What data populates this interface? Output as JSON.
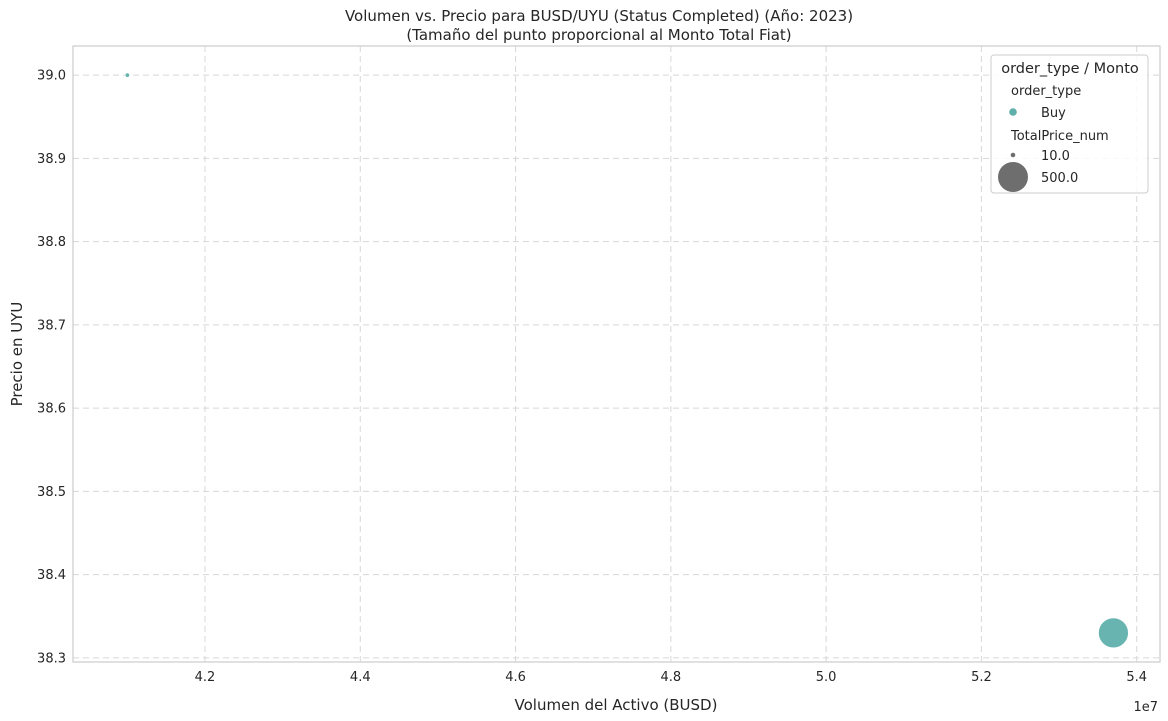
{
  "chart_data": {
    "type": "scatter",
    "title": "Volumen vs. Precio para BUSD/UYU (Status Completed) (Año: 2023)",
    "subtitle": "(Tamaño del punto proporcional al Monto Total Fiat)",
    "xlabel": "Volumen del Activo (BUSD)",
    "ylabel": "Precio en UYU",
    "x_offset_text": "1e7",
    "xlim": [
      4.03,
      5.43
    ],
    "ylim": [
      38.295,
      39.035
    ],
    "x_ticks": [
      4.2,
      4.4,
      4.6,
      4.8,
      5.0,
      5.2,
      5.4
    ],
    "x_tick_labels": [
      "4.2",
      "4.4",
      "4.6",
      "4.8",
      "5.0",
      "5.2",
      "5.4"
    ],
    "y_ticks": [
      38.3,
      38.4,
      38.5,
      38.6,
      38.7,
      38.8,
      38.9,
      39.0
    ],
    "y_tick_labels": [
      "38.3",
      "38.4",
      "38.5",
      "38.6",
      "38.7",
      "38.8",
      "38.9",
      "39.0"
    ],
    "grid": true,
    "legend_position": "top-right",
    "series": [
      {
        "name": "Buy",
        "color": "#5fb0ad",
        "points": [
          {
            "x": 4.1,
            "y": 39.0,
            "size": 10.0
          },
          {
            "x": 5.37,
            "y": 38.33,
            "size": 500.0
          }
        ]
      }
    ],
    "legend": {
      "title": "order_type / Monto",
      "hue_heading": "order_type",
      "hue_entries": [
        {
          "label": "Buy",
          "color": "#5fb0ad"
        }
      ],
      "size_heading": "TotalPrice_num",
      "size_entries": [
        {
          "label": "10.0",
          "value": 10.0,
          "color": "#6e6e6e"
        },
        {
          "label": "500.0",
          "value": 500.0,
          "color": "#6e6e6e"
        }
      ]
    }
  }
}
